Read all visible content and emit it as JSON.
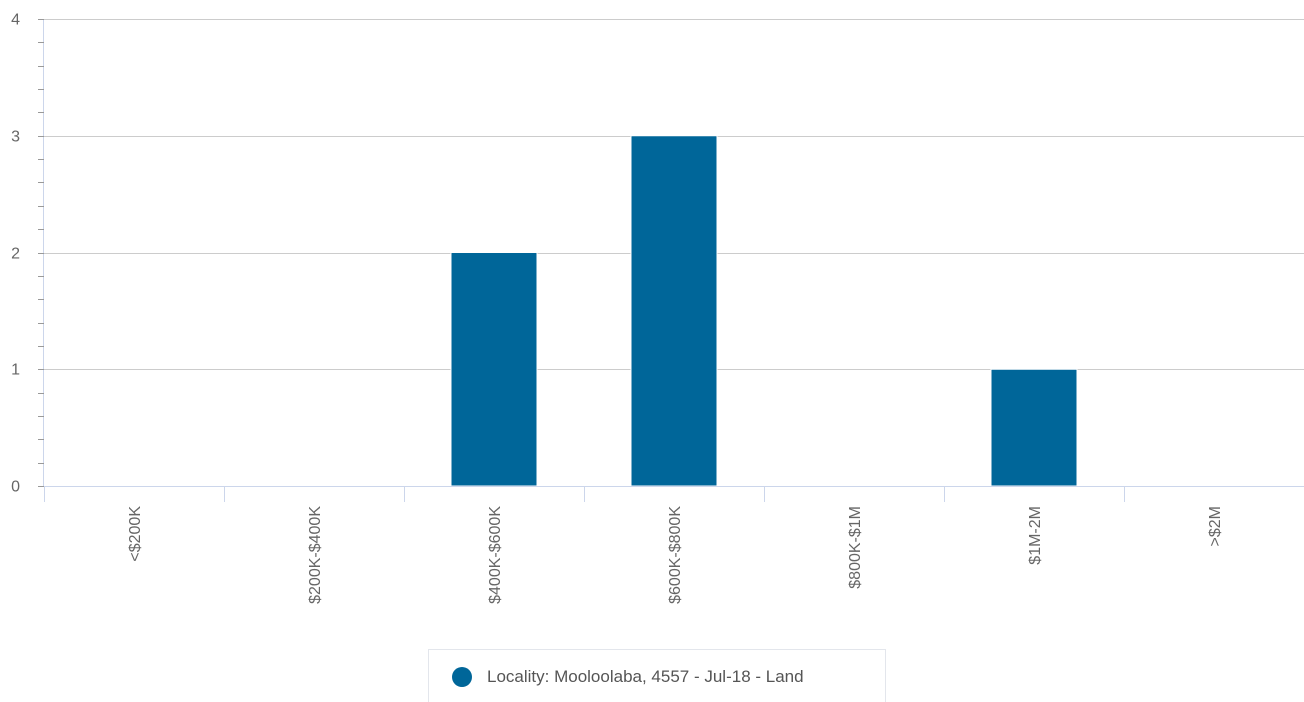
{
  "chart_data": {
    "type": "bar",
    "categories": [
      "<$200K",
      "$200K-$400K",
      "$400K-$600K",
      "$600K-$800K",
      "$800K-$1M",
      "$1M-2M",
      ">$2M"
    ],
    "series": [
      {
        "name": "Locality: Mooloolaba, 4557 - Jul-18 - Land",
        "values": [
          0,
          0,
          2,
          3,
          0,
          1,
          0
        ]
      }
    ],
    "ylim": [
      0,
      4
    ],
    "yticks": [
      0,
      1,
      2,
      3,
      4
    ],
    "yminor_ticks_per_major": 5,
    "grid": true,
    "legend_position": "bottom-center",
    "title": "",
    "xlabel": "",
    "ylabel": ""
  },
  "colors": {
    "bar": "#006699",
    "grid": "#cccccc",
    "axis": "#ccd6eb",
    "tick_text": "#666666",
    "legend_border": "#e3e6ec"
  },
  "legend": {
    "label": "Locality: Mooloolaba, 4557 - Jul-18 - Land",
    "marker_icon": "circle-marker-icon"
  }
}
